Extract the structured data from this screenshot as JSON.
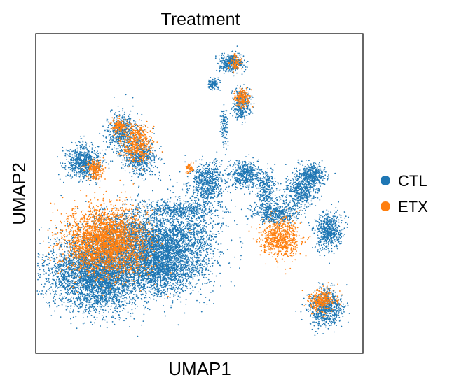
{
  "chart_data": {
    "type": "scatter",
    "title": "Treatment",
    "xlabel": "UMAP1",
    "ylabel": "UMAP2",
    "grid": false,
    "ticks": "none",
    "legend_position": "right",
    "series": [
      {
        "name": "CTL",
        "color": "#1f77b4"
      },
      {
        "name": "ETX",
        "color": "#ff7f0e"
      }
    ]
  }
}
